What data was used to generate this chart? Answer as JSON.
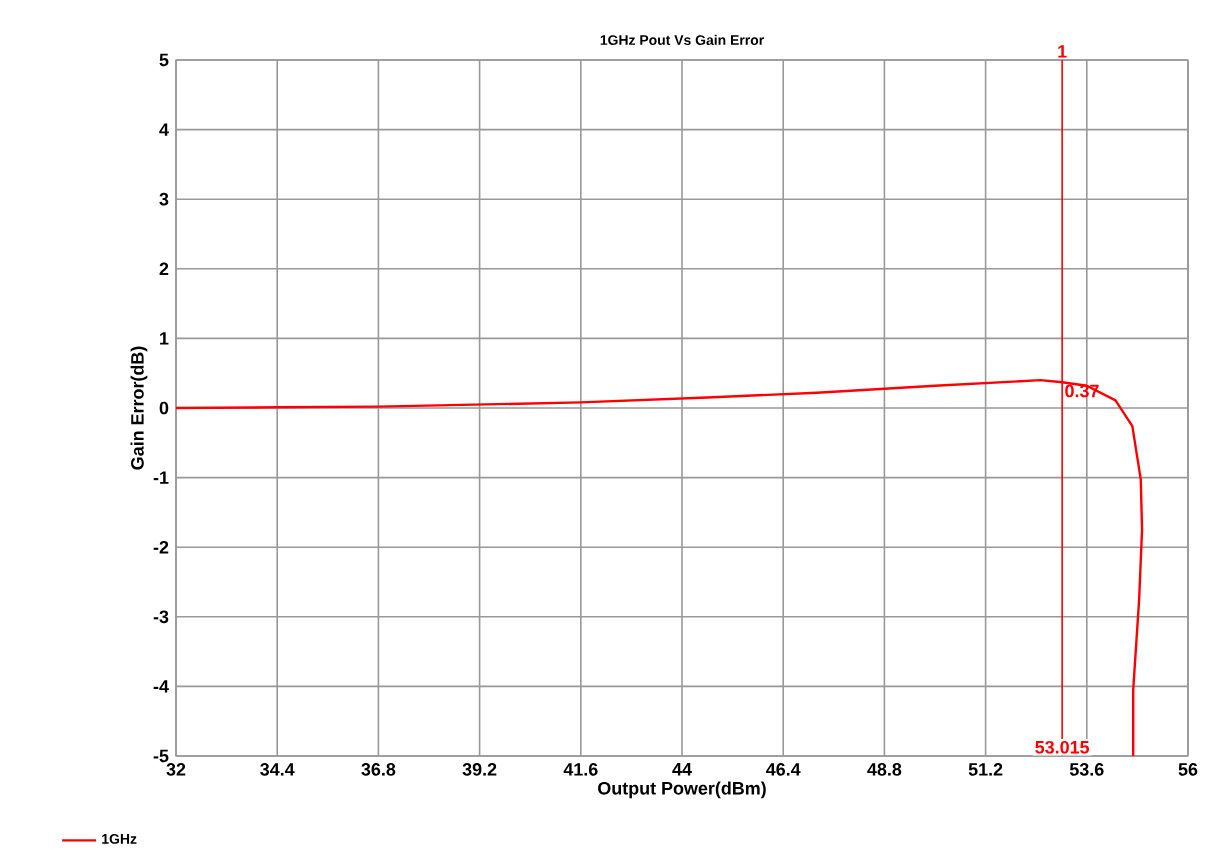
{
  "chart_data": {
    "type": "line",
    "title": "1GHz Pout Vs Gain Error",
    "xlabel": "Output Power(dBm)",
    "ylabel": "Gain Error(dB)",
    "xlim": [
      32,
      56
    ],
    "xticks": [
      32,
      34.4,
      36.8,
      39.2,
      41.6,
      44,
      46.4,
      48.8,
      51.2,
      53.6,
      56
    ],
    "ylim": [
      -5,
      5
    ],
    "yticks": [
      -5,
      -4,
      -3,
      -2,
      -1,
      0,
      1,
      2,
      3,
      4,
      5
    ],
    "grid": true,
    "legend": "bottom left",
    "series": [
      {
        "name": "1GHz",
        "color": "#ff0000",
        "x": [
          32,
          34.4,
          36.8,
          39.2,
          41.6,
          44.6,
          47.2,
          50,
          52.5,
          53.015,
          53.6,
          54.28,
          54.68,
          54.88,
          54.91,
          54.84,
          54.7,
          54.7
        ],
        "values": [
          0,
          0.01,
          0.02,
          0.05,
          0.08,
          0.15,
          0.22,
          0.32,
          0.4,
          0.37,
          0.32,
          0.11,
          -0.26,
          -1.03,
          -1.75,
          -2.76,
          -4.05,
          -5
        ]
      }
    ],
    "ref_lines": [
      {
        "axis": "x",
        "value": 53.015,
        "color": "#ff0000"
      }
    ],
    "annotations": [
      "1",
      {
        "text": "0.37",
        "x": 53.015,
        "y": 0.37
      },
      "53.015"
    ]
  }
}
